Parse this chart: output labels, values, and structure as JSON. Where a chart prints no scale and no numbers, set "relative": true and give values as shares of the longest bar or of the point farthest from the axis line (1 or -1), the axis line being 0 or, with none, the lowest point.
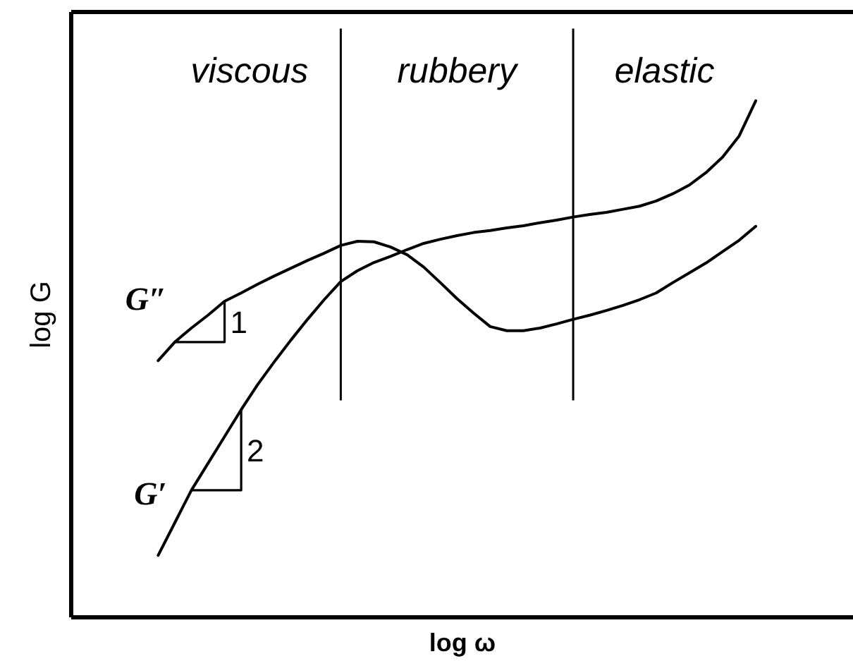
{
  "chart_data": {
    "type": "line",
    "relative": true,
    "xlabel": "log ω",
    "ylabel": "log G",
    "categories": [
      null,
      null,
      null,
      null,
      null,
      null,
      null,
      null,
      null,
      null,
      null,
      null,
      null,
      null,
      null,
      null,
      null,
      null,
      null,
      null,
      null,
      null,
      null,
      null,
      null,
      null,
      null,
      null,
      null,
      null,
      null,
      null,
      null,
      null,
      null,
      null,
      null
    ],
    "series": [
      {
        "name": "G″",
        "color": "#000000",
        "values": [
          0.497,
          0.533,
          0.56,
          0.585,
          0.612,
          0.628,
          0.645,
          0.661,
          0.676,
          0.691,
          0.705,
          0.72,
          0.728,
          0.727,
          0.717,
          0.702,
          0.678,
          0.648,
          0.617,
          0.589,
          0.563,
          0.555,
          0.555,
          0.56,
          0.568,
          0.577,
          0.585,
          0.594,
          0.604,
          0.615,
          0.628,
          0.648,
          0.667,
          0.686,
          0.708,
          0.73,
          0.757
        ]
      },
      {
        "name": "G′",
        "color": "#000000",
        "values": [
          0.12,
          0.183,
          0.246,
          0.298,
          0.35,
          0.402,
          0.451,
          0.495,
          0.537,
          0.577,
          0.615,
          0.65,
          0.671,
          0.687,
          0.699,
          0.712,
          0.724,
          0.732,
          0.739,
          0.745,
          0.749,
          0.754,
          0.758,
          0.764,
          0.769,
          0.775,
          0.78,
          0.784,
          0.79,
          0.796,
          0.806,
          0.82,
          0.837,
          0.861,
          0.891,
          0.932,
          1.0
        ]
      }
    ],
    "annotations": [
      "viscous",
      "rubbery",
      "elastic",
      "1",
      "2"
    ]
  }
}
